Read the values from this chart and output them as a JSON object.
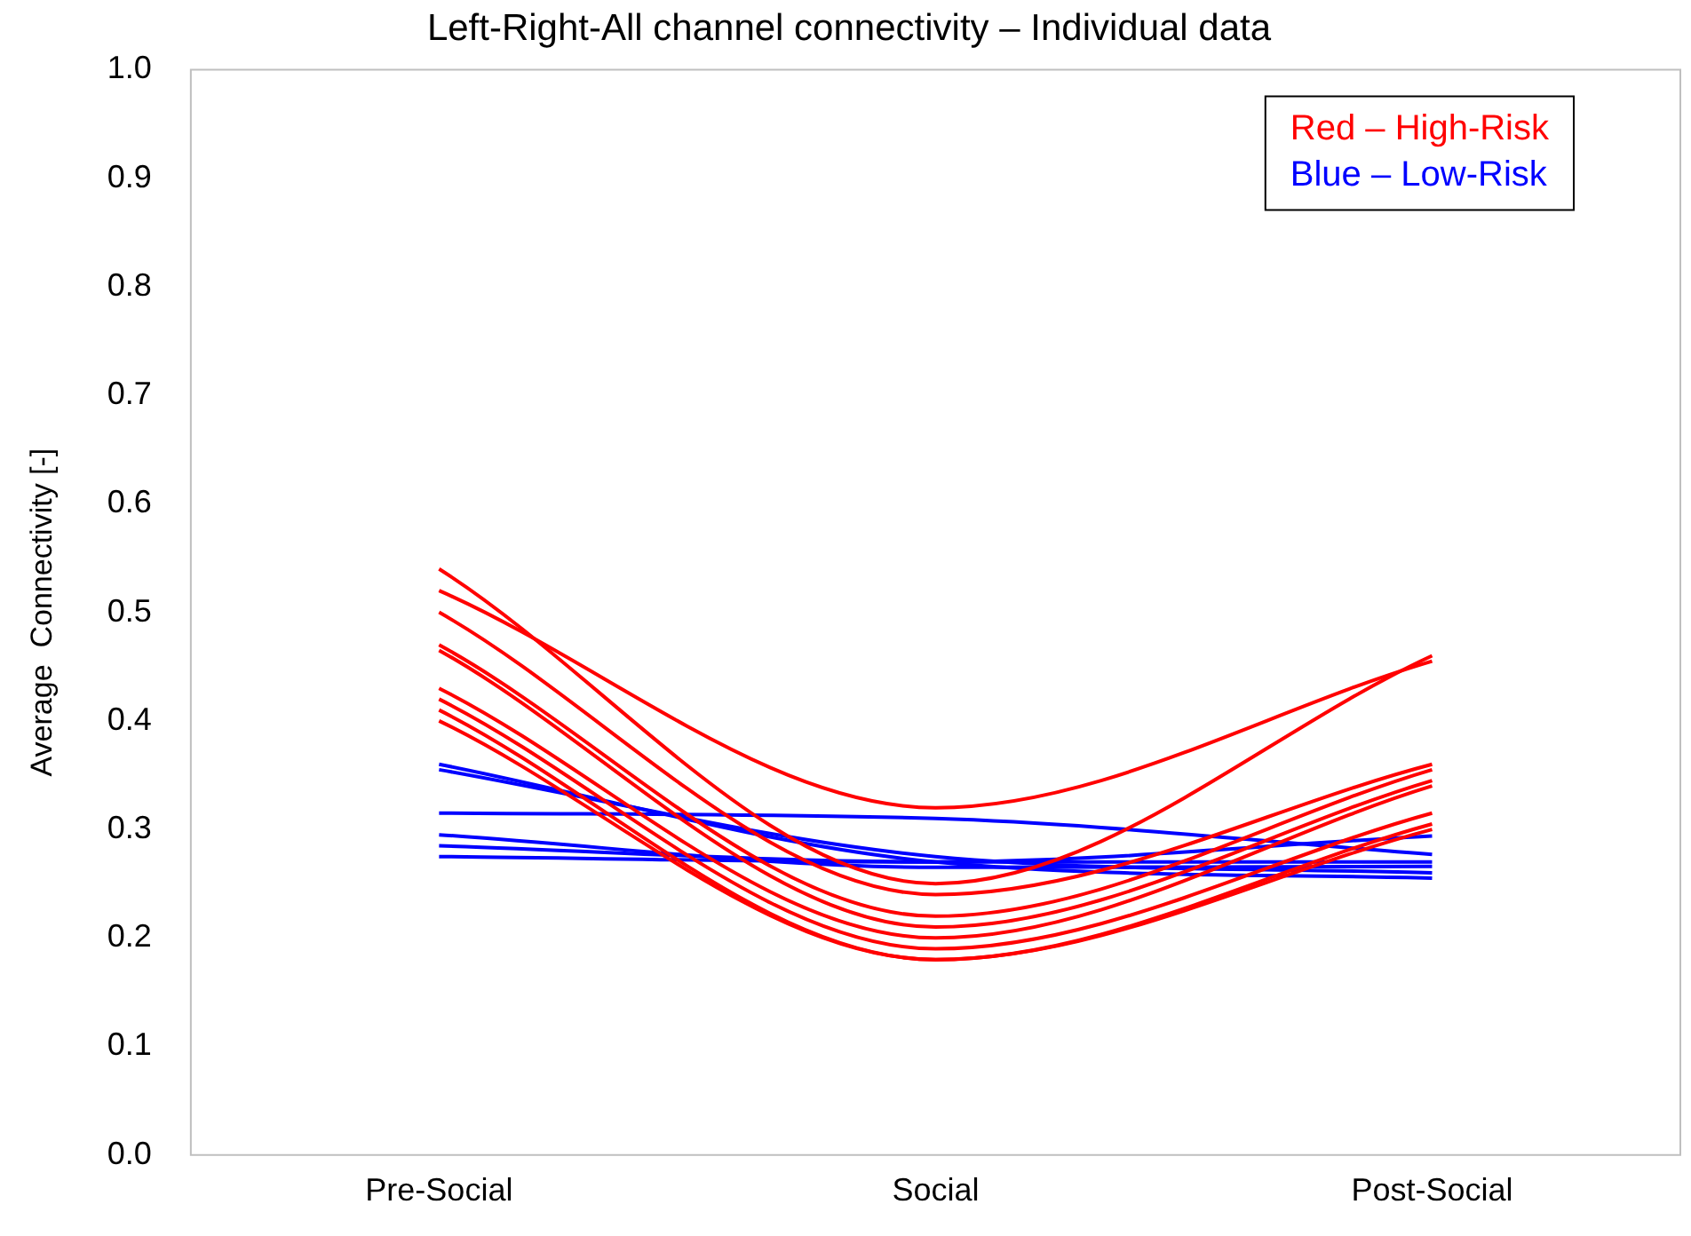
{
  "chart_data": {
    "type": "line",
    "title": "Left-Right-All channel connectivity – Individual data",
    "ylabel": "Average  Connectivity [-]",
    "categories": [
      "Pre-Social",
      "Social",
      "Post-Social"
    ],
    "ylim": [
      0,
      1
    ],
    "yticks": [
      {
        "value": 0,
        "label": "0.0"
      },
      {
        "value": 0.1,
        "label": "0.1"
      },
      {
        "value": 0.2,
        "label": "0.2"
      },
      {
        "value": 0.3,
        "label": "0.3"
      },
      {
        "value": 0.4,
        "label": "0.4"
      },
      {
        "value": 0.5,
        "label": "0.5"
      },
      {
        "value": 0.6,
        "label": "0.6"
      },
      {
        "value": 0.7,
        "label": "0.7"
      },
      {
        "value": 0.8,
        "label": "0.8"
      },
      {
        "value": 0.9,
        "label": "0.9"
      },
      {
        "value": 1,
        "label": "1.0"
      }
    ],
    "grid": false,
    "legend": "top right",
    "marker": "none",
    "line_style": "solid",
    "series": [
      {
        "name": "Red – High-Risk",
        "color": "#ff0000",
        "values": [
          0.54,
          0.25,
          0.46
        ]
      },
      {
        "color": "#ff0000",
        "values": [
          0.52,
          0.32,
          0.455
        ]
      },
      {
        "color": "#ff0000",
        "values": [
          0.5,
          0.24,
          0.36
        ]
      },
      {
        "color": "#ff0000",
        "values": [
          0.47,
          0.22,
          0.355
        ]
      },
      {
        "color": "#ff0000",
        "values": [
          0.465,
          0.21,
          0.345
        ]
      },
      {
        "color": "#ff0000",
        "values": [
          0.43,
          0.2,
          0.34
        ]
      },
      {
        "color": "#ff0000",
        "values": [
          0.42,
          0.19,
          0.315
        ]
      },
      {
        "color": "#ff0000",
        "values": [
          0.41,
          0.18,
          0.305
        ]
      },
      {
        "color": "#ff0000",
        "values": [
          0.4,
          0.18,
          0.3
        ]
      },
      {
        "name": "Blue – Low-Risk",
        "color": "#0000ff",
        "values": [
          0.36,
          0.27,
          0.255
        ]
      },
      {
        "color": "#0000ff",
        "values": [
          0.355,
          0.275,
          0.26
        ]
      },
      {
        "color": "#0000ff",
        "values": [
          0.315,
          0.31,
          0.277
        ]
      },
      {
        "color": "#0000ff",
        "values": [
          0.295,
          0.265,
          0.266
        ]
      },
      {
        "color": "#0000ff",
        "values": [
          0.285,
          0.27,
          0.294
        ]
      },
      {
        "color": "#0000ff",
        "values": [
          0.275,
          0.27,
          0.27
        ]
      }
    ]
  }
}
